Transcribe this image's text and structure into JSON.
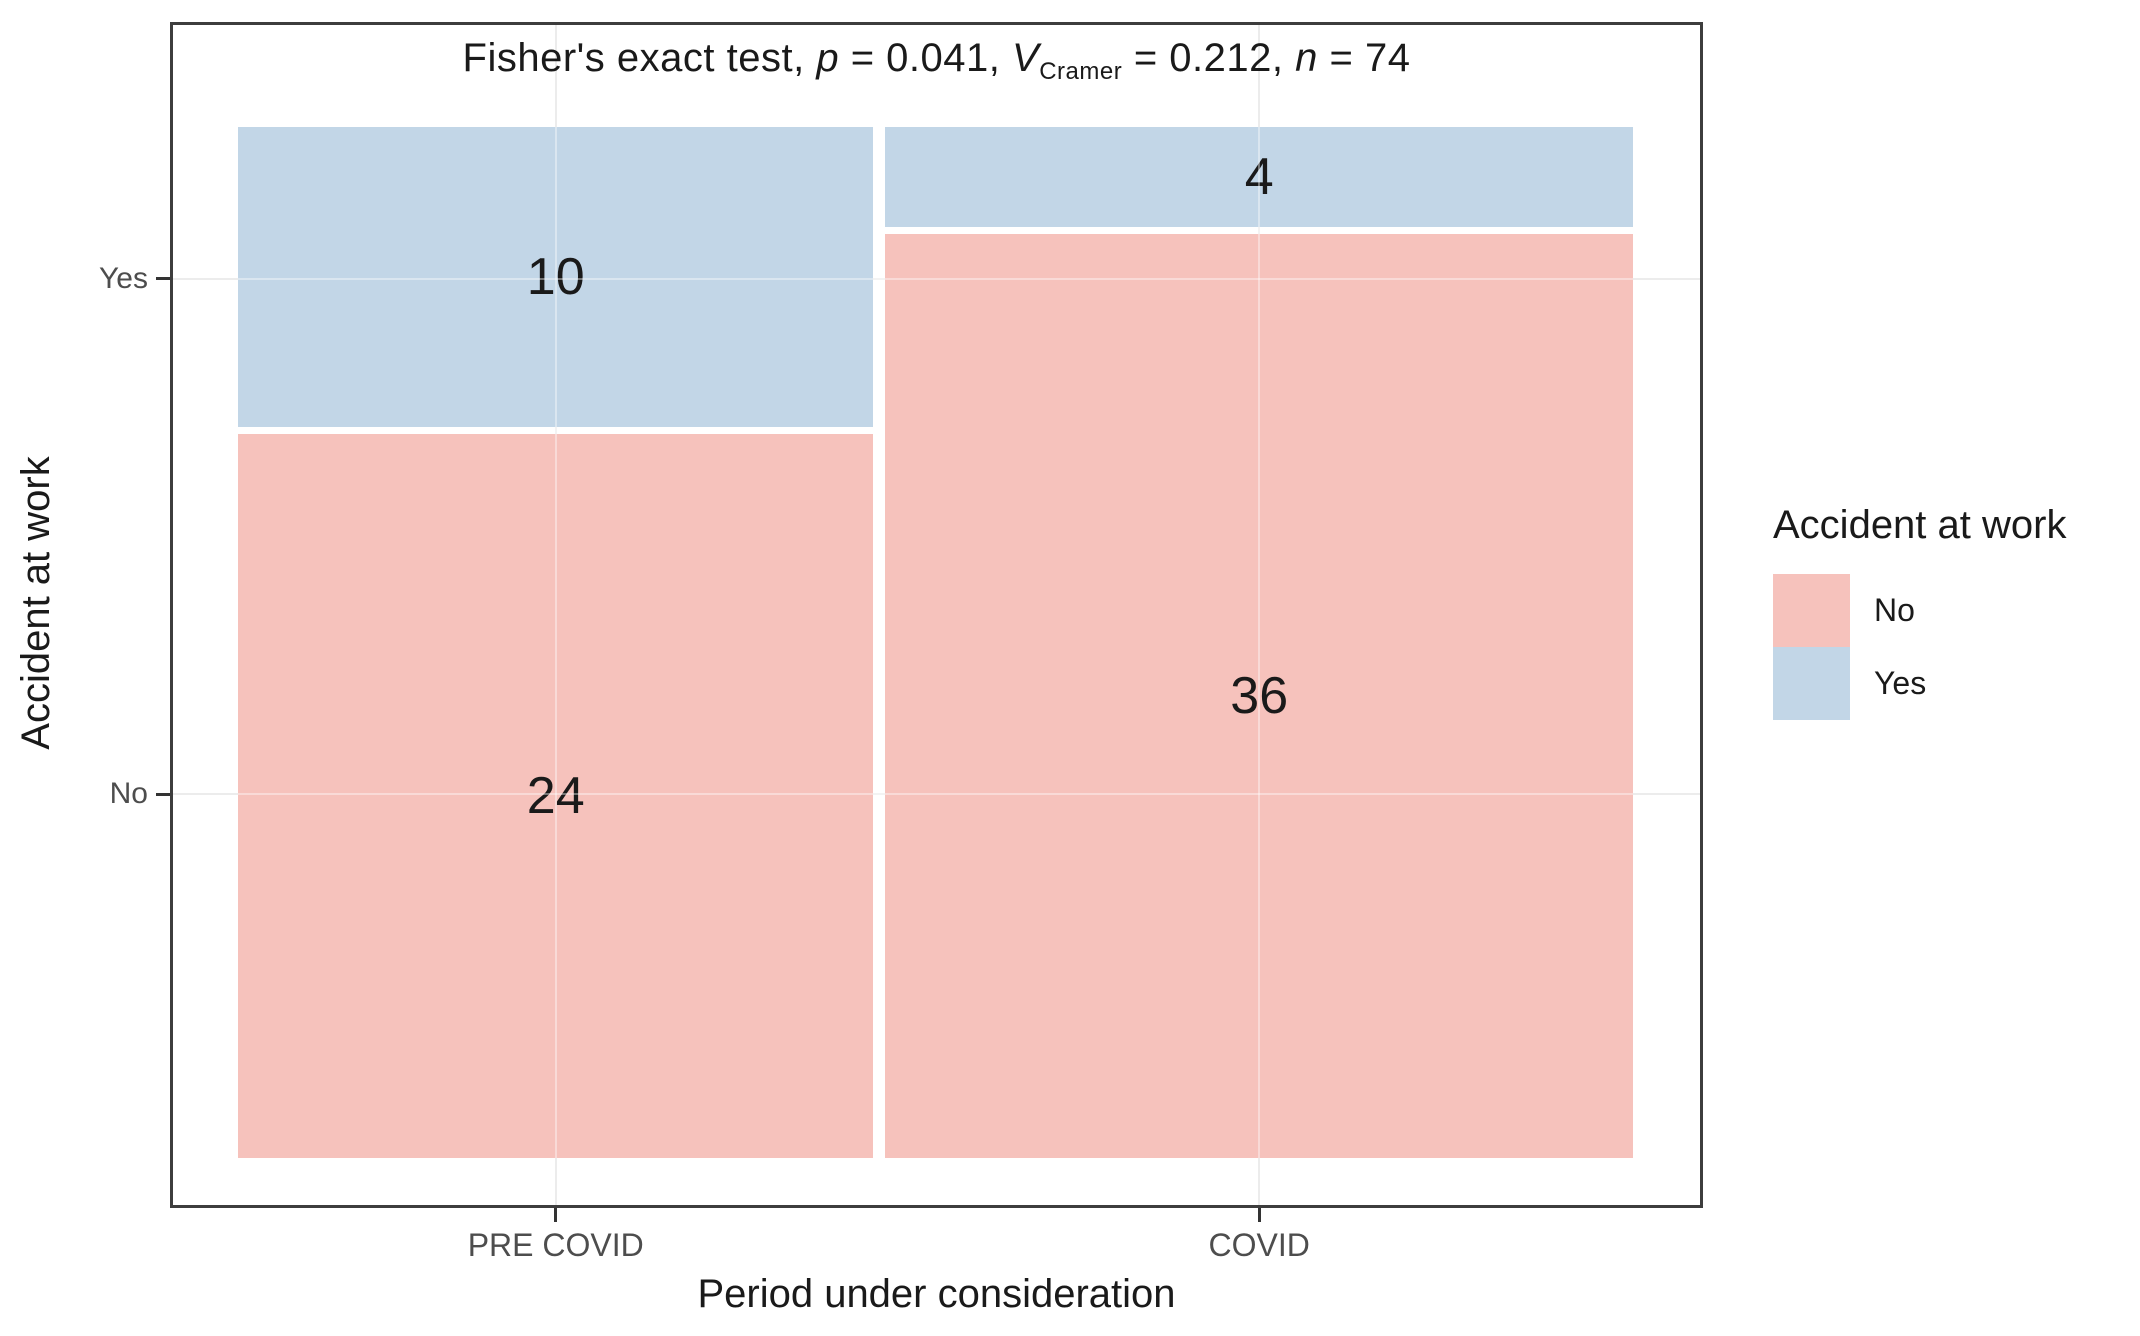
{
  "chart_data": {
    "type": "mosaic",
    "title": "Fisher's exact test, p = 0.041, V_Cramer = 0.212, n = 74",
    "title_parts": [
      {
        "text": "Fisher's exact test, ",
        "style": "normal"
      },
      {
        "text": "p",
        "style": "italic"
      },
      {
        "text": " = 0.041, ",
        "style": "normal"
      },
      {
        "text": "V",
        "style": "italic"
      },
      {
        "text": "Cramer",
        "style": "subscript"
      },
      {
        "text": " = 0.212, ",
        "style": "normal"
      },
      {
        "text": "n",
        "style": "italic"
      },
      {
        "text": " = 74",
        "style": "normal"
      }
    ],
    "stats": {
      "test": "Fisher's exact test",
      "p_value": "0.041",
      "cramers_v": "0.212",
      "n": "74"
    },
    "xlabel": "Period under consideration",
    "ylabel": "Accident at work",
    "categories": [
      "PRE COVID",
      "COVID"
    ],
    "y_categories_top_to_bottom": [
      "Yes",
      "No"
    ],
    "cells": [
      {
        "x": "PRE COVID",
        "y": "Yes",
        "count": 10
      },
      {
        "x": "PRE COVID",
        "y": "No",
        "count": 24
      },
      {
        "x": "COVID",
        "y": "Yes",
        "count": 4
      },
      {
        "x": "COVID",
        "y": "No",
        "count": 36
      }
    ],
    "column_totals": [
      34,
      40
    ],
    "n_total": 74,
    "colors": {
      "No": "#F6C2BC",
      "Yes": "#C2D6E7"
    },
    "grid": true,
    "legend": {
      "title": "Accident at work",
      "position": "right",
      "entries": [
        {
          "label": "No",
          "color": "#F6C2BC"
        },
        {
          "label": "Yes",
          "color": "#C2D6E7"
        }
      ]
    }
  }
}
